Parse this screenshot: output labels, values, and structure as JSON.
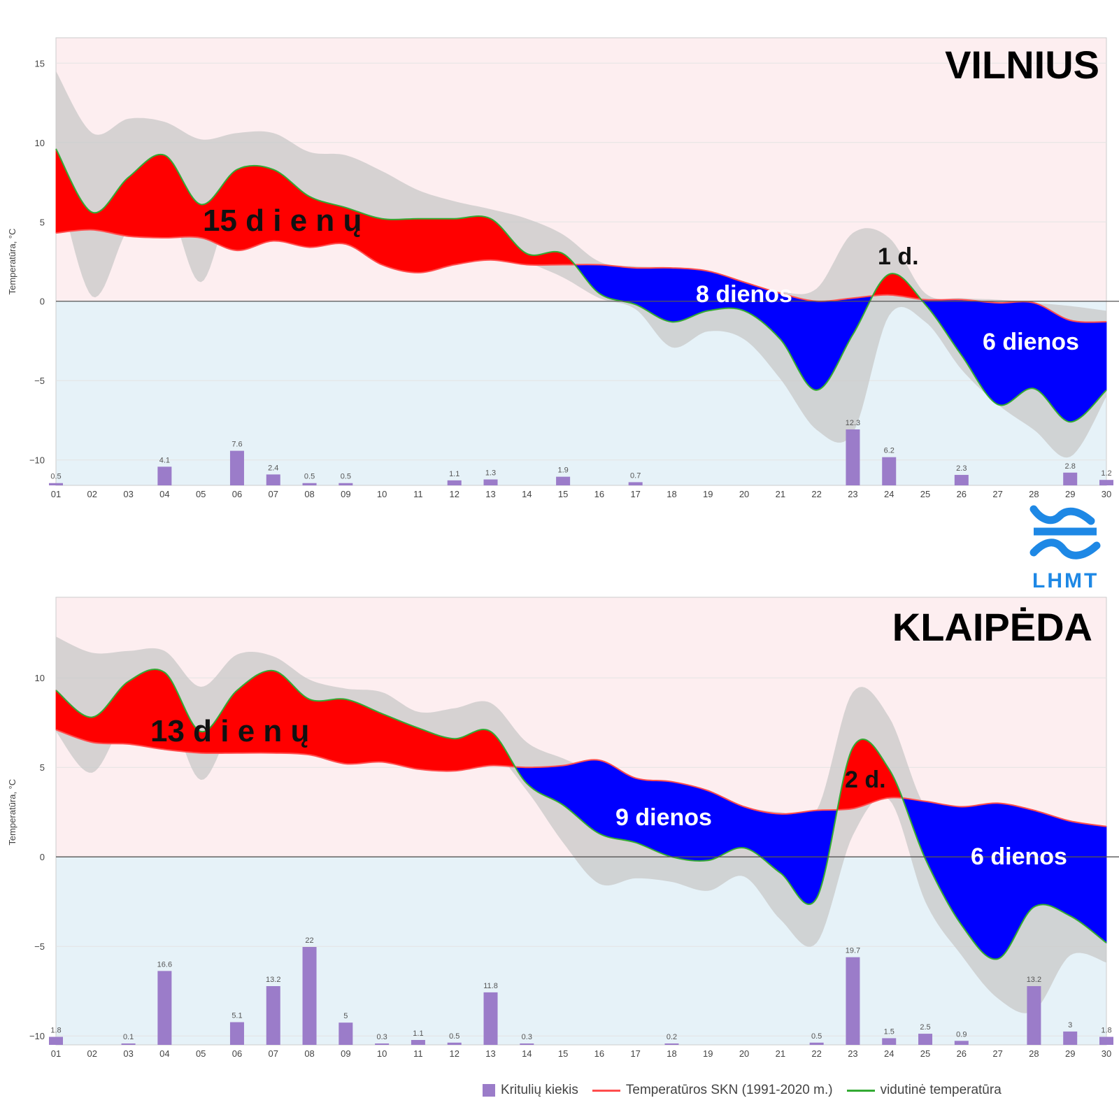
{
  "chart_data": [
    {
      "type": "area",
      "title": "VILNIUS",
      "ylabel": "Temperatūra, °C",
      "ylim": [
        -11.6,
        16.6
      ],
      "yticks": [
        15,
        10,
        5,
        0,
        -5,
        -10
      ],
      "x": [
        "01",
        "02",
        "03",
        "04",
        "05",
        "06",
        "07",
        "08",
        "09",
        "10",
        "11",
        "12",
        "13",
        "14",
        "15",
        "16",
        "17",
        "18",
        "19",
        "20",
        "21",
        "22",
        "23",
        "24",
        "25",
        "26",
        "27",
        "28",
        "29",
        "30"
      ],
      "grid": true,
      "series": [
        {
          "name": "vidutinė temperatūra",
          "values": [
            9.6,
            5.6,
            7.8,
            9.2,
            6.1,
            8.3,
            8.3,
            6.6,
            5.9,
            5.2,
            5.2,
            5.2,
            5.2,
            3.0,
            3.0,
            0.5,
            -0.2,
            -1.3,
            -0.6,
            -0.6,
            -2.4,
            -5.6,
            -2.1,
            1.7,
            -0.2,
            -3.4,
            -6.5,
            -5.5,
            -7.6,
            -5.6
          ]
        },
        {
          "name": "Temperatūros SKN (1991-2020 m.)",
          "values": [
            4.3,
            4.5,
            4.1,
            4.0,
            4.0,
            3.2,
            3.8,
            3.4,
            3.6,
            2.3,
            1.8,
            2.3,
            2.6,
            2.3,
            2.3,
            2.3,
            2.1,
            2.1,
            1.9,
            1.2,
            0.5,
            0.0,
            0.2,
            0.4,
            0.1,
            0.1,
            -0.1,
            -0.1,
            -1.2,
            -1.3
          ]
        },
        {
          "name": "max",
          "values": [
            14.5,
            10.6,
            11.5,
            11.3,
            10.2,
            10.6,
            10.6,
            9.4,
            9.2,
            8.2,
            7.0,
            6.3,
            5.8,
            5.2,
            4.2,
            2.5,
            2.2,
            2.1,
            1.5,
            1.1,
            0.6,
            0.8,
            4.3,
            4.0,
            0.5,
            0.2,
            0.1,
            -0.1,
            -0.3,
            -0.6
          ]
        },
        {
          "name": "min",
          "values": [
            8.0,
            0.3,
            4.6,
            6.5,
            1.2,
            7.2,
            5.2,
            4.3,
            4.6,
            4.6,
            3.8,
            3.8,
            3.6,
            2.5,
            1.5,
            0.2,
            -0.5,
            -2.9,
            -1.9,
            -2.4,
            -4.9,
            -8.1,
            -8.3,
            -0.9,
            -1.3,
            -4.3,
            -6.5,
            -8.1,
            -9.8,
            -6.0
          ]
        }
      ],
      "precipitation": {
        "name": "Kritulių kiekis",
        "values": [
          0.5,
          0,
          0,
          4.1,
          0,
          7.6,
          2.4,
          0.5,
          0.5,
          0,
          0,
          1.1,
          1.3,
          0,
          1.9,
          0,
          0.7,
          0,
          0,
          0,
          0,
          0,
          12.3,
          6.2,
          0,
          2.3,
          0,
          0,
          2.8,
          1.2
        ],
        "labels": [
          "0.5",
          "",
          "",
          "4.1",
          "",
          "7.6",
          "2.4",
          "0.5",
          "0.5",
          "",
          "",
          "1.1",
          "1.3",
          "",
          "1.9",
          "",
          "0.7",
          "",
          "",
          "",
          "",
          "",
          "12.3",
          "6.2",
          "",
          "2.3",
          "",
          "",
          "2.8",
          "1.2"
        ]
      },
      "annotations": [
        "15 d i e n ų",
        "8 dienos",
        "1 d.",
        "6 dienos"
      ],
      "colors": {
        "warm": "#ff0000",
        "cold": "#0000ff",
        "skn": "#ff4d4d",
        "avg": "#33aa33",
        "spread": "#c8c8c8",
        "bg_warm": "#fdeef0",
        "bg_cold": "#e6f2f8",
        "bars": "#9b7cc9"
      }
    },
    {
      "type": "area",
      "title": "KLAIPĖDA",
      "ylabel": "Temperatūra, °C",
      "ylim": [
        -10.5,
        14.5
      ],
      "yticks": [
        10,
        5,
        0,
        -5,
        -10
      ],
      "x": [
        "01",
        "02",
        "03",
        "04",
        "05",
        "06",
        "07",
        "08",
        "09",
        "10",
        "11",
        "12",
        "13",
        "14",
        "15",
        "16",
        "17",
        "18",
        "19",
        "20",
        "21",
        "22",
        "23",
        "24",
        "25",
        "26",
        "27",
        "28",
        "29",
        "30"
      ],
      "grid": true,
      "series": [
        {
          "name": "vidutinė temperatūra",
          "values": [
            9.3,
            7.8,
            9.8,
            10.3,
            7.0,
            9.3,
            10.4,
            8.8,
            8.8,
            8.0,
            7.2,
            6.6,
            7.0,
            4.1,
            2.9,
            1.3,
            0.8,
            0.0,
            -0.2,
            0.5,
            -0.9,
            -2.3,
            6.1,
            4.9,
            -0.1,
            -3.8,
            -5.7,
            -2.8,
            -3.3,
            -4.8
          ]
        },
        {
          "name": "Temperatūros SKN (1991-2020 m.)",
          "values": [
            7.1,
            6.4,
            6.3,
            6.0,
            5.8,
            5.8,
            5.8,
            5.7,
            5.2,
            5.3,
            4.9,
            4.8,
            5.1,
            5.0,
            5.1,
            5.4,
            4.4,
            4.2,
            3.7,
            2.8,
            2.4,
            2.6,
            2.7,
            3.3,
            3.1,
            2.8,
            3.0,
            2.6,
            2.0,
            1.7
          ]
        },
        {
          "name": "max",
          "values": [
            12.3,
            11.4,
            11.5,
            11.5,
            9.5,
            11.3,
            11.2,
            9.9,
            9.4,
            9.2,
            8.1,
            8.3,
            8.6,
            6.4,
            5.5,
            4.7,
            4.3,
            4.0,
            3.5,
            2.8,
            2.5,
            2.6,
            9.2,
            7.8,
            2.8,
            2.3,
            2.2,
            1.9,
            1.8,
            1.5
          ]
        },
        {
          "name": "min",
          "values": [
            7.0,
            4.7,
            8.0,
            8.6,
            4.3,
            7.8,
            8.0,
            7.4,
            7.0,
            6.4,
            5.5,
            5.2,
            5.9,
            3.7,
            0.8,
            -1.5,
            -1.2,
            -1.4,
            -1.9,
            -1.1,
            -3.5,
            -4.8,
            1.2,
            3.2,
            -2.5,
            -5.5,
            -7.9,
            -8.6,
            -5.5,
            -5.9
          ]
        }
      ],
      "precipitation": {
        "name": "Kritulių kiekis",
        "values": [
          1.8,
          0,
          0.1,
          16.6,
          0,
          5.1,
          13.2,
          22,
          5,
          0.3,
          1.1,
          0.5,
          11.8,
          0.3,
          0,
          0,
          0,
          0.2,
          0,
          0,
          0,
          0.5,
          19.7,
          1.5,
          2.5,
          0.9,
          0,
          13.2,
          3,
          1.8
        ],
        "labels": [
          "1.8",
          "",
          "0.1",
          "16.6",
          "",
          "5.1",
          "13.2",
          "22",
          "5",
          "0.3",
          "1.1",
          "0.5",
          "11.8",
          "0.3",
          "",
          "",
          "",
          "0.2",
          "",
          "",
          "",
          "0.5",
          "19.7",
          "1.5",
          "2.5",
          "0.9",
          "",
          "13.2",
          "3",
          "1.8"
        ]
      },
      "annotations": [
        "13 d i e n ų",
        "9 dienos",
        "2 d.",
        "6 dienos"
      ],
      "colors": {
        "warm": "#ff0000",
        "cold": "#0000ff",
        "skn": "#ff4d4d",
        "avg": "#33aa33",
        "spread": "#c8c8c8",
        "bg_warm": "#fdeef0",
        "bg_cold": "#e6f2f8",
        "bars": "#9b7cc9"
      }
    }
  ],
  "logo": {
    "text": "LHMT",
    "color": "#1e88e5"
  },
  "legend": {
    "items": [
      {
        "label": "Kritulių kiekis",
        "color": "#9b7cc9",
        "kind": "box"
      },
      {
        "label": "Temperatūros SKN (1991-2020 m.)",
        "color": "#ff4d4d",
        "kind": "line"
      },
      {
        "label": "vidutinė temperatūra",
        "color": "#33aa33",
        "kind": "line"
      }
    ]
  }
}
